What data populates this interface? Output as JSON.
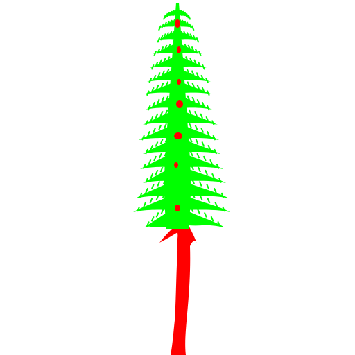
{
  "image": {
    "subject": "tree-silhouette",
    "background_color": "#ffffff",
    "foliage_color": "#00ff00",
    "trunk_color": "#ff0000"
  }
}
